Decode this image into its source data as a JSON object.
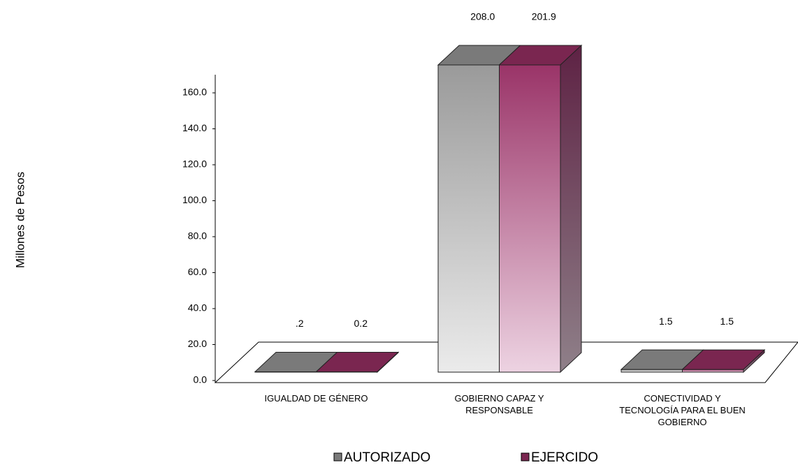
{
  "chart_data": {
    "type": "bar3d",
    "y_axis_label": "Millones de Pesos",
    "categories": [
      "IGUALDAD DE GÉNERO",
      "GOBIERNO CAPAZ Y RESPONSABLE",
      "CONECTIVIDAD Y TECNOLOGÍA PARA EL BUEN GOBIERNO"
    ],
    "series": [
      {
        "name": "AUTORIZADO",
        "color": "#7a7a7a",
        "values": [
          0.2,
          208.0,
          1.5
        ],
        "value_labels": [
          ".2",
          "208.0",
          "1.5"
        ]
      },
      {
        "name": "EJERCIDO",
        "color": "#7a2650",
        "values": [
          0.2,
          201.9,
          1.5
        ],
        "value_labels": [
          "0.2",
          "201.9",
          "1.5"
        ]
      }
    ],
    "ylim": [
      0,
      170
    ],
    "yticks": [
      {
        "value": 0,
        "label": "0.0"
      },
      {
        "value": 20,
        "label": "20.0"
      },
      {
        "value": 40,
        "label": "40.0"
      },
      {
        "value": 60,
        "label": "60.0"
      },
      {
        "value": 80,
        "label": "80.0"
      },
      {
        "value": 100,
        "label": "100.0"
      },
      {
        "value": 120,
        "label": "120.0"
      },
      {
        "value": 140,
        "label": "140.0"
      },
      {
        "value": 160,
        "label": "160.0"
      }
    ]
  }
}
